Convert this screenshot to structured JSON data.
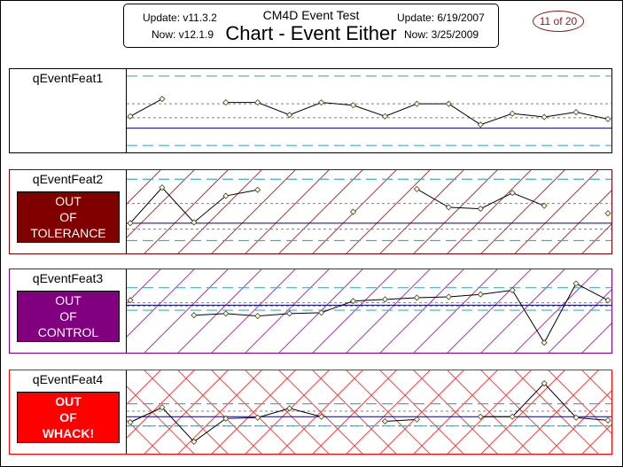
{
  "header": {
    "update_version": "Update: v11.3.2",
    "now_version": "Now: v12.1.9",
    "title": "CM4D Event Test",
    "subtitle": "Chart - Event Either",
    "update_date": "Update: 6/19/2007",
    "now_date": "Now: 3/25/2009",
    "page": "11 of 20"
  },
  "colors": {
    "limit_line": "#40b0c0",
    "nominal_line": "#000080",
    "mean_line": "#808080",
    "tolerance_fill": "#800000",
    "control_fill": "#800080",
    "whack_fill": "#ff0000"
  },
  "panels": [
    {
      "name": "qEventFeat1",
      "status": null,
      "hatch": "none"
    },
    {
      "name": "qEventFeat2",
      "status": {
        "lines": [
          "OUT",
          "OF",
          "TOLERANCE"
        ]
      },
      "hatch": "diag-red"
    },
    {
      "name": "qEventFeat3",
      "status": {
        "lines": [
          "OUT",
          "OF",
          "CONTROL"
        ]
      },
      "hatch": "diag-purple"
    },
    {
      "name": "qEventFeat4",
      "status": {
        "lines": [
          "OUT",
          "OF",
          "WHACK!"
        ]
      },
      "hatch": "cross-red"
    }
  ],
  "chart_data": [
    {
      "type": "line",
      "title": "qEventFeat1",
      "x": [
        1,
        2,
        3,
        4,
        5,
        6,
        7,
        8,
        9,
        10,
        11,
        12,
        13,
        14,
        15,
        16
      ],
      "series": [
        {
          "values": [
            -0.8,
            1.7,
            null,
            1.2,
            1.2,
            -0.6,
            1.2,
            0.8,
            -0.8,
            1.0,
            1.0,
            -2.0,
            -0.4,
            -0.9,
            -0.2,
            -1.2
          ]
        }
      ],
      "upper_limit": 5,
      "lower_limit": -5,
      "upper_control": 1,
      "lower_control": -1,
      "nominal": -2.5,
      "ylim": [
        -6,
        6
      ],
      "grid": false
    },
    {
      "type": "line",
      "title": "qEventFeat2",
      "x": [
        1,
        2,
        3,
        4,
        5,
        6,
        7,
        8,
        9,
        10,
        11,
        12,
        13,
        14,
        15,
        16
      ],
      "series": [
        {
          "values": [
            0.0,
            4.7,
            0.1,
            3.6,
            4.4,
            null,
            null,
            1.5,
            null,
            4.5,
            2.1,
            1.9,
            4.0,
            2.3,
            null,
            1.3
          ]
        }
      ],
      "upper_limit": 5.8,
      "lower_limit": -2.3,
      "upper_control": 2.6,
      "lower_control": -0.8,
      "nominal": 0,
      "ylim": [
        -4,
        7
      ],
      "grid": false
    },
    {
      "type": "line",
      "title": "qEventFeat3",
      "x": [
        1,
        2,
        3,
        4,
        5,
        6,
        7,
        8,
        9,
        10,
        11,
        12,
        13,
        14,
        15,
        16
      ],
      "series": [
        {
          "values": [
            0.3,
            null,
            -1.5,
            -1.3,
            -1.6,
            -1.3,
            -1.2,
            0.2,
            0.4,
            0.6,
            0.7,
            1.0,
            1.5,
            -4.8,
            2.3,
            0.3
          ]
        }
      ],
      "upper_limit": 1.8,
      "lower_limit": -0.9,
      "upper_control": 0.0,
      "lower_control": -0.4,
      "nominal": -0.3,
      "ylim": [
        -6,
        4
      ],
      "grid": false
    },
    {
      "type": "line",
      "title": "qEventFeat4",
      "x": [
        1,
        2,
        3,
        4,
        5,
        6,
        7,
        8,
        9,
        10,
        11,
        12,
        13,
        14,
        15,
        16
      ],
      "series": [
        {
          "values": [
            -0.6,
            1.0,
            -2.7,
            -0.2,
            -0.1,
            0.9,
            0.0,
            null,
            -0.5,
            -0.3,
            null,
            0.0,
            0.0,
            3.6,
            -0.1,
            -0.4
          ]
        }
      ],
      "upper_limit": 1.4,
      "lower_limit": -1.0,
      "upper_control": 0.6,
      "lower_control": -1.0,
      "nominal": 0.0,
      "ylim": [
        -4,
        5
      ],
      "grid": false
    }
  ]
}
